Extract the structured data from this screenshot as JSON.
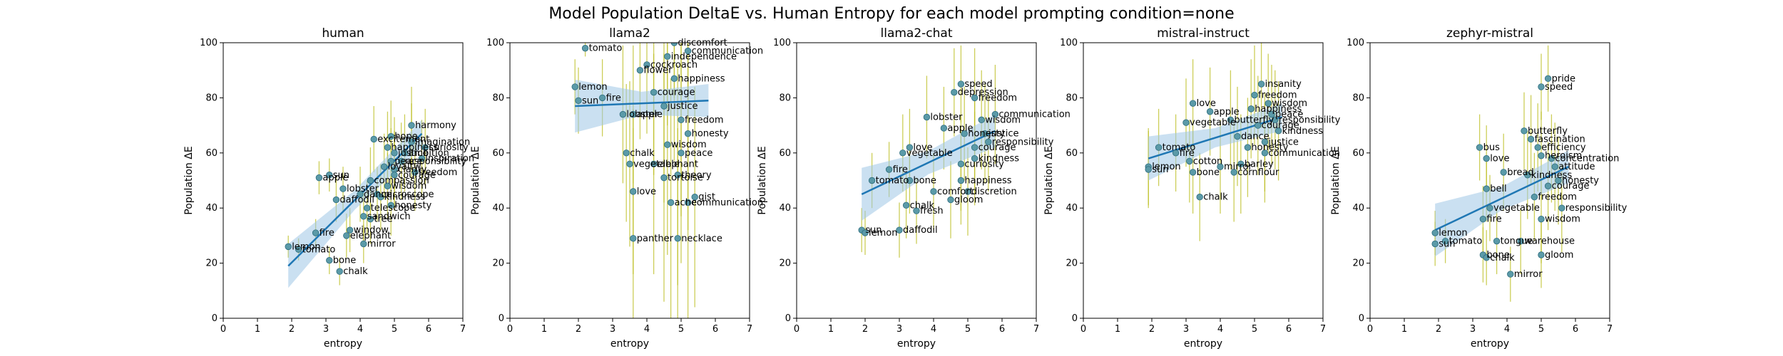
{
  "figure": {
    "title": "Model Population DeltaE vs. Human Entropy for each model prompting condition=none",
    "colors": {
      "point": "#5b9aa8",
      "point_edge": "#2d6c7d",
      "errorbar": "#bcbd22",
      "fit": "#1f77b4",
      "band": "#9ec7e6"
    }
  },
  "chart_data": [
    {
      "type": "scatter",
      "title": "human",
      "xlabel": "entropy",
      "ylabel": "Population ΔE",
      "xlim": [
        0,
        7
      ],
      "ylim": [
        0,
        100
      ],
      "xticks": [
        "0",
        "1",
        "2",
        "3",
        "4",
        "5",
        "6",
        "7"
      ],
      "yticks": [
        "0",
        "20",
        "40",
        "60",
        "80",
        "100"
      ],
      "grid": false,
      "fit": {
        "x": [
          1.9,
          5.8
        ],
        "y": [
          19,
          67
        ],
        "band": 5
      },
      "points": [
        {
          "x": 1.9,
          "y": 26,
          "label": "lemon",
          "err": 4
        },
        {
          "x": 2.2,
          "y": 25,
          "label": "tomato",
          "err": 4
        },
        {
          "x": 2.7,
          "y": 31,
          "label": "fire",
          "err": 5
        },
        {
          "x": 2.8,
          "y": 51,
          "label": "apple",
          "err": 6
        },
        {
          "x": 3.1,
          "y": 52,
          "label": "sun",
          "err": 6
        },
        {
          "x": 3.1,
          "y": 21,
          "label": "bone",
          "err": 5
        },
        {
          "x": 3.4,
          "y": 17,
          "label": "chalk",
          "err": 5
        },
        {
          "x": 3.7,
          "y": 32,
          "label": "window",
          "err": 8
        },
        {
          "x": 3.6,
          "y": 30,
          "label": "elephant",
          "err": 8
        },
        {
          "x": 4.1,
          "y": 27,
          "label": "mirror",
          "err": 7
        },
        {
          "x": 4.2,
          "y": 40,
          "label": "telescope",
          "err": 10
        },
        {
          "x": 4.1,
          "y": 37,
          "label": "sandwich",
          "err": 9
        },
        {
          "x": 3.5,
          "y": 47,
          "label": "lobster",
          "err": 8
        },
        {
          "x": 3.3,
          "y": 43,
          "label": "daffodil",
          "err": 8
        },
        {
          "x": 4.0,
          "y": 45,
          "label": "dance",
          "err": 10
        },
        {
          "x": 4.5,
          "y": 45,
          "label": "microscope",
          "err": 10
        },
        {
          "x": 4.4,
          "y": 65,
          "label": "excitement",
          "err": 12
        },
        {
          "x": 5.0,
          "y": 60,
          "label": "justice",
          "err": 13
        },
        {
          "x": 5.2,
          "y": 57,
          "label": "responsibility",
          "err": 14
        },
        {
          "x": 5.0,
          "y": 54,
          "label": "clarity",
          "err": 14
        },
        {
          "x": 5.3,
          "y": 60,
          "label": "ambition",
          "err": 14
        },
        {
          "x": 5.0,
          "y": 52,
          "label": "courage",
          "err": 13
        },
        {
          "x": 4.7,
          "y": 55,
          "label": "loyalty",
          "err": 12
        },
        {
          "x": 4.6,
          "y": 44,
          "label": "kindness",
          "err": 12
        },
        {
          "x": 5.6,
          "y": 53,
          "label": "freedom",
          "err": 14
        },
        {
          "x": 4.8,
          "y": 48,
          "label": "wisdom",
          "err": 12
        },
        {
          "x": 4.8,
          "y": 62,
          "label": "happiness",
          "err": 13
        },
        {
          "x": 4.9,
          "y": 41,
          "label": "honesty",
          "err": 11
        },
        {
          "x": 5.5,
          "y": 64,
          "label": "imagination",
          "err": 14
        },
        {
          "x": 4.9,
          "y": 57,
          "label": "peace",
          "err": 12
        },
        {
          "x": 4.3,
          "y": 50,
          "label": "compassion",
          "err": 12
        },
        {
          "x": 5.9,
          "y": 62,
          "label": "curiosity",
          "err": 14
        },
        {
          "x": 4.9,
          "y": 66,
          "label": "hope",
          "err": 13
        },
        {
          "x": 4.3,
          "y": 36,
          "label": "tree",
          "err": 9
        },
        {
          "x": 5.8,
          "y": 58,
          "label": "inspiration",
          "err": 14
        },
        {
          "x": 5.5,
          "y": 70,
          "label": "harmony",
          "err": 14
        }
      ]
    },
    {
      "type": "scatter",
      "title": "llama2",
      "xlabel": "entropy",
      "ylabel": "Population ΔE",
      "xlim": [
        0,
        7
      ],
      "ylim": [
        0,
        100
      ],
      "xticks": [
        "0",
        "1",
        "2",
        "3",
        "4",
        "5",
        "6",
        "7"
      ],
      "yticks": [
        "0",
        "20",
        "40",
        "60",
        "80",
        "100"
      ],
      "grid": false,
      "fit": {
        "x": [
          1.9,
          5.8
        ],
        "y": [
          77,
          79
        ],
        "band": 6
      },
      "points": [
        {
          "x": 1.9,
          "y": 84,
          "label": "lemon",
          "err": 10
        },
        {
          "x": 2.0,
          "y": 79,
          "label": "sun",
          "err": 12
        },
        {
          "x": 2.7,
          "y": 80,
          "label": "fire",
          "err": 14
        },
        {
          "x": 2.2,
          "y": 98,
          "label": "tomato",
          "err": 3
        },
        {
          "x": 3.3,
          "y": 74,
          "label": "lobster",
          "err": 25
        },
        {
          "x": 3.6,
          "y": 74,
          "label": "apple",
          "err": 25
        },
        {
          "x": 3.4,
          "y": 60,
          "label": "chalk",
          "err": 25
        },
        {
          "x": 3.5,
          "y": 56,
          "label": "vegetable",
          "err": 30
        },
        {
          "x": 3.6,
          "y": 46,
          "label": "love",
          "err": 30
        },
        {
          "x": 3.6,
          "y": 29,
          "label": "panther",
          "err": 40
        },
        {
          "x": 4.2,
          "y": 56,
          "label": "elephant",
          "err": 40
        },
        {
          "x": 4.5,
          "y": 51,
          "label": "tortoise",
          "err": 45
        },
        {
          "x": 4.9,
          "y": 52,
          "label": "theory",
          "err": 40
        },
        {
          "x": 4.7,
          "y": 42,
          "label": "ache",
          "err": 45
        },
        {
          "x": 5.2,
          "y": 42,
          "label": "communication",
          "err": 45
        },
        {
          "x": 5.4,
          "y": 44,
          "label": "gist",
          "err": 40
        },
        {
          "x": 4.9,
          "y": 29,
          "label": "necklace",
          "err": 40
        },
        {
          "x": 4.8,
          "y": 100,
          "label": "discomfort",
          "err": 20
        },
        {
          "x": 5.2,
          "y": 97,
          "label": "communication",
          "err": 20
        },
        {
          "x": 4.0,
          "y": 92,
          "label": "cockroach",
          "err": 25
        },
        {
          "x": 3.8,
          "y": 90,
          "label": "flower",
          "err": 25
        },
        {
          "x": 4.2,
          "y": 82,
          "label": "courage",
          "err": 30
        },
        {
          "x": 4.8,
          "y": 87,
          "label": "happiness",
          "err": 30
        },
        {
          "x": 4.5,
          "y": 77,
          "label": "justice",
          "err": 35
        },
        {
          "x": 5.0,
          "y": 72,
          "label": "freedom",
          "err": 35
        },
        {
          "x": 5.2,
          "y": 67,
          "label": "honesty",
          "err": 35
        },
        {
          "x": 4.6,
          "y": 63,
          "label": "wisdom",
          "err": 40
        },
        {
          "x": 5.0,
          "y": 60,
          "label": "peace",
          "err": 40
        },
        {
          "x": 4.6,
          "y": 95,
          "label": "independence",
          "err": 25
        }
      ]
    },
    {
      "type": "scatter",
      "title": "llama2-chat",
      "xlabel": "entropy",
      "ylabel": "Population ΔE",
      "xlim": [
        0,
        7
      ],
      "ylim": [
        0,
        100
      ],
      "xticks": [
        "0",
        "1",
        "2",
        "3",
        "4",
        "5",
        "6",
        "7"
      ],
      "yticks": [
        "0",
        "20",
        "40",
        "60",
        "80",
        "100"
      ],
      "grid": false,
      "fit": {
        "x": [
          1.9,
          5.8
        ],
        "y": [
          45,
          68
        ],
        "band": 6
      },
      "points": [
        {
          "x": 1.9,
          "y": 32,
          "label": "sun",
          "err": 8
        },
        {
          "x": 2.0,
          "y": 31,
          "label": "lemon",
          "err": 8
        },
        {
          "x": 2.2,
          "y": 50,
          "label": "tomato",
          "err": 10
        },
        {
          "x": 2.7,
          "y": 54,
          "label": "fire",
          "err": 10
        },
        {
          "x": 3.0,
          "y": 32,
          "label": "daffodil",
          "err": 10
        },
        {
          "x": 3.3,
          "y": 50,
          "label": "bone",
          "err": 12
        },
        {
          "x": 3.2,
          "y": 41,
          "label": "chalk",
          "err": 12
        },
        {
          "x": 3.5,
          "y": 39,
          "label": "fresh",
          "err": 12
        },
        {
          "x": 3.3,
          "y": 62,
          "label": "love",
          "err": 14
        },
        {
          "x": 3.1,
          "y": 60,
          "label": "vegetable",
          "err": 14
        },
        {
          "x": 4.0,
          "y": 46,
          "label": "comfort",
          "err": 14
        },
        {
          "x": 4.5,
          "y": 43,
          "label": "gloom",
          "err": 14
        },
        {
          "x": 4.3,
          "y": 69,
          "label": "apple",
          "err": 15
        },
        {
          "x": 3.8,
          "y": 73,
          "label": "lobster",
          "err": 15
        },
        {
          "x": 4.8,
          "y": 85,
          "label": "speed",
          "err": 14
        },
        {
          "x": 4.6,
          "y": 82,
          "label": "depression",
          "err": 16
        },
        {
          "x": 5.2,
          "y": 80,
          "label": "freedom",
          "err": 18
        },
        {
          "x": 4.8,
          "y": 50,
          "label": "happiness",
          "err": 16
        },
        {
          "x": 5.0,
          "y": 46,
          "label": "discretion",
          "err": 16
        },
        {
          "x": 4.8,
          "y": 56,
          "label": "curiosity",
          "err": 17
        },
        {
          "x": 5.2,
          "y": 62,
          "label": "courage",
          "err": 17
        },
        {
          "x": 5.6,
          "y": 64,
          "label": "responsibility",
          "err": 18
        },
        {
          "x": 5.4,
          "y": 72,
          "label": "wisdom",
          "err": 18
        },
        {
          "x": 5.8,
          "y": 74,
          "label": "communication",
          "err": 18
        },
        {
          "x": 5.5,
          "y": 67,
          "label": "justice",
          "err": 18
        },
        {
          "x": 4.9,
          "y": 67,
          "label": "honesty",
          "err": 17
        },
        {
          "x": 5.2,
          "y": 58,
          "label": "kindness",
          "err": 17
        }
      ]
    },
    {
      "type": "scatter",
      "title": "mistral-instruct",
      "xlabel": "entropy",
      "ylabel": "Population ΔE",
      "xlim": [
        0,
        7
      ],
      "ylim": [
        0,
        100
      ],
      "xticks": [
        "0",
        "1",
        "2",
        "3",
        "4",
        "5",
        "6",
        "7"
      ],
      "yticks": [
        "0",
        "20",
        "40",
        "60",
        "80",
        "100"
      ],
      "grid": false,
      "fit": {
        "x": [
          1.9,
          5.8
        ],
        "y": [
          58,
          73
        ],
        "band": 5
      },
      "points": [
        {
          "x": 1.9,
          "y": 55,
          "label": "lemon",
          "err": 14
        },
        {
          "x": 1.9,
          "y": 54,
          "label": "sun",
          "err": 14
        },
        {
          "x": 2.2,
          "y": 62,
          "label": "tomato",
          "err": 14
        },
        {
          "x": 2.7,
          "y": 60,
          "label": "fire",
          "err": 14
        },
        {
          "x": 3.1,
          "y": 57,
          "label": "cotton",
          "err": 15
        },
        {
          "x": 3.2,
          "y": 53,
          "label": "bone",
          "err": 15
        },
        {
          "x": 3.4,
          "y": 44,
          "label": "chalk",
          "err": 16
        },
        {
          "x": 3.0,
          "y": 71,
          "label": "vegetable",
          "err": 16
        },
        {
          "x": 3.2,
          "y": 78,
          "label": "love",
          "err": 16
        },
        {
          "x": 3.7,
          "y": 75,
          "label": "apple",
          "err": 16
        },
        {
          "x": 4.0,
          "y": 55,
          "label": "mirror",
          "err": 17
        },
        {
          "x": 4.4,
          "y": 53,
          "label": "cornflour",
          "err": 18
        },
        {
          "x": 4.6,
          "y": 56,
          "label": "barley",
          "err": 18
        },
        {
          "x": 4.5,
          "y": 66,
          "label": "dance",
          "err": 18
        },
        {
          "x": 4.3,
          "y": 72,
          "label": "butterfly",
          "err": 18
        },
        {
          "x": 5.2,
          "y": 85,
          "label": "insanity",
          "err": 16
        },
        {
          "x": 5.0,
          "y": 81,
          "label": "freedom",
          "err": 18
        },
        {
          "x": 5.4,
          "y": 78,
          "label": "wisdom",
          "err": 18
        },
        {
          "x": 5.6,
          "y": 72,
          "label": "responsibility",
          "err": 18
        },
        {
          "x": 5.1,
          "y": 70,
          "label": "courage",
          "err": 18
        },
        {
          "x": 5.3,
          "y": 64,
          "label": "justice",
          "err": 18
        },
        {
          "x": 4.8,
          "y": 62,
          "label": "honesty",
          "err": 18
        },
        {
          "x": 5.5,
          "y": 74,
          "label": "peace",
          "err": 18
        },
        {
          "x": 5.7,
          "y": 68,
          "label": "kindness",
          "err": 18
        },
        {
          "x": 4.9,
          "y": 76,
          "label": "happiness",
          "err": 18
        },
        {
          "x": 5.3,
          "y": 60,
          "label": "communication",
          "err": 18
        }
      ]
    },
    {
      "type": "scatter",
      "title": "zephyr-mistral",
      "xlabel": "entropy",
      "ylabel": "Population ΔE",
      "xlim": [
        0,
        7
      ],
      "ylim": [
        0,
        100
      ],
      "xticks": [
        "0",
        "1",
        "2",
        "3",
        "4",
        "5",
        "6",
        "7"
      ],
      "yticks": [
        "0",
        "20",
        "40",
        "60",
        "80",
        "100"
      ],
      "grid": false,
      "fit": {
        "x": [
          1.9,
          5.8
        ],
        "y": [
          32,
          55
        ],
        "band": 6
      },
      "points": [
        {
          "x": 1.9,
          "y": 31,
          "label": "lemon",
          "err": 8
        },
        {
          "x": 1.9,
          "y": 27,
          "label": "sun",
          "err": 8
        },
        {
          "x": 2.2,
          "y": 28,
          "label": "tomato",
          "err": 8
        },
        {
          "x": 3.2,
          "y": 62,
          "label": "bus",
          "err": 12
        },
        {
          "x": 3.4,
          "y": 58,
          "label": "love",
          "err": 12
        },
        {
          "x": 3.3,
          "y": 23,
          "label": "bone",
          "err": 10
        },
        {
          "x": 3.4,
          "y": 22,
          "label": "chalk",
          "err": 10
        },
        {
          "x": 4.1,
          "y": 16,
          "label": "mirror",
          "err": 10
        },
        {
          "x": 5.0,
          "y": 23,
          "label": "gloom",
          "err": 12
        },
        {
          "x": 4.4,
          "y": 28,
          "label": "warehouse",
          "err": 12
        },
        {
          "x": 3.7,
          "y": 28,
          "label": "tongue",
          "err": 12
        },
        {
          "x": 3.3,
          "y": 36,
          "label": "fire",
          "err": 12
        },
        {
          "x": 3.5,
          "y": 40,
          "label": "vegetable",
          "err": 12
        },
        {
          "x": 3.4,
          "y": 47,
          "label": "bell",
          "err": 12
        },
        {
          "x": 3.9,
          "y": 53,
          "label": "bread",
          "err": 14
        },
        {
          "x": 5.2,
          "y": 87,
          "label": "pride",
          "err": 12
        },
        {
          "x": 5.0,
          "y": 84,
          "label": "speed",
          "err": 12
        },
        {
          "x": 4.5,
          "y": 68,
          "label": "butterfly",
          "err": 14
        },
        {
          "x": 4.7,
          "y": 65,
          "label": "fascination",
          "err": 16
        },
        {
          "x": 4.9,
          "y": 62,
          "label": "efficiency",
          "err": 16
        },
        {
          "x": 5.3,
          "y": 58,
          "label": "concentration",
          "err": 16
        },
        {
          "x": 5.4,
          "y": 55,
          "label": "attitude",
          "err": 16
        },
        {
          "x": 5.0,
          "y": 59,
          "label": "heroism",
          "err": 16
        },
        {
          "x": 5.6,
          "y": 40,
          "label": "responsibility",
          "err": 16
        },
        {
          "x": 5.0,
          "y": 36,
          "label": "wisdom",
          "err": 16
        },
        {
          "x": 5.2,
          "y": 48,
          "label": "courage",
          "err": 16
        },
        {
          "x": 5.5,
          "y": 50,
          "label": "honesty",
          "err": 16
        },
        {
          "x": 4.8,
          "y": 44,
          "label": "freedom",
          "err": 16
        },
        {
          "x": 4.6,
          "y": 52,
          "label": "kindness",
          "err": 16
        }
      ]
    }
  ]
}
